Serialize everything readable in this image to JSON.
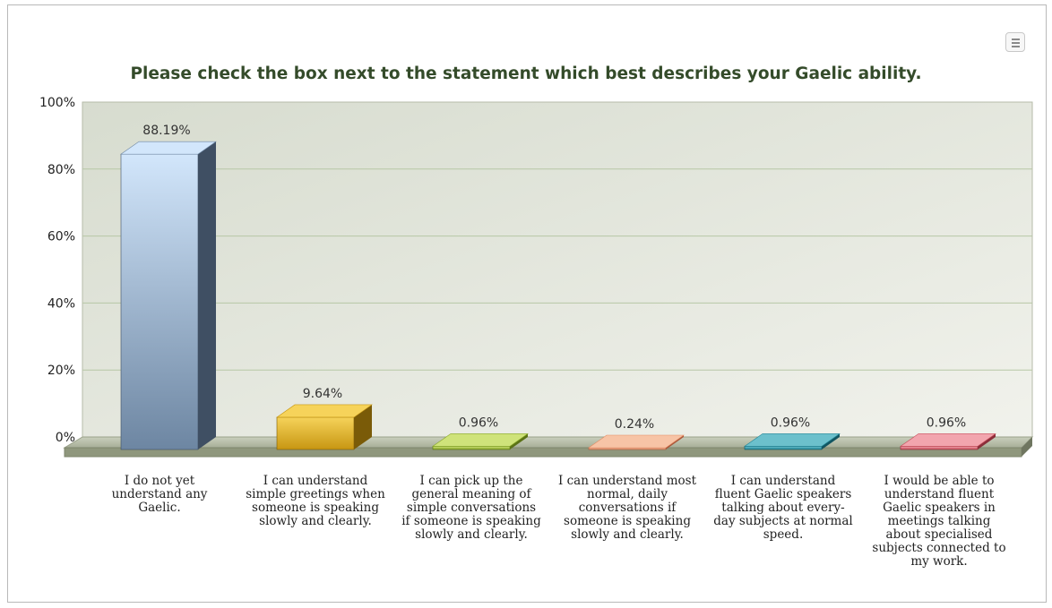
{
  "chart_data": {
    "type": "bar",
    "title": "Please check the box next to the statement which best describes your Gaelic ability.",
    "categories": [
      "I do not yet understand any Gaelic.",
      "I can understand simple greetings when someone is speaking slowly and clearly.",
      "I can pick up the general meaning of simple conversations if someone is speaking slowly and clearly.",
      "I can understand most normal, daily conversations if someone is speaking slowly and clearly.",
      "I can understand fluent Gaelic speakers talking about every-day subjects at normal speed.",
      "I would be able to understand fluent Gaelic speakers in meetings talking about specialised subjects connected to my work."
    ],
    "values": [
      88.19,
      9.64,
      0.96,
      0.24,
      0.96,
      0.96
    ],
    "data_labels": [
      "88.19%",
      "9.64%",
      "0.96%",
      "0.24%",
      "0.96%",
      "0.96%"
    ],
    "ylim": [
      0,
      100
    ],
    "yticks": [
      "0%",
      "20%",
      "40%",
      "60%",
      "80%",
      "100%"
    ],
    "grid": true,
    "legend": "none",
    "colors": [
      {
        "light": "#d2e6fb",
        "dark": "#6d86a2",
        "side": "#3f4f63"
      },
      {
        "light": "#f6d35a",
        "dark": "#c79612",
        "side": "#7a5b08"
      },
      {
        "light": "#cfe37a",
        "dark": "#86a624",
        "side": "#5a7216"
      },
      {
        "light": "#f7c4a6",
        "dark": "#e48a62",
        "side": "#a9583a"
      },
      {
        "light": "#6cc0cc",
        "dark": "#1f8496",
        "side": "#125561"
      },
      {
        "light": "#f2a5ae",
        "dark": "#c74c5a",
        "side": "#8a2e3a"
      }
    ]
  }
}
